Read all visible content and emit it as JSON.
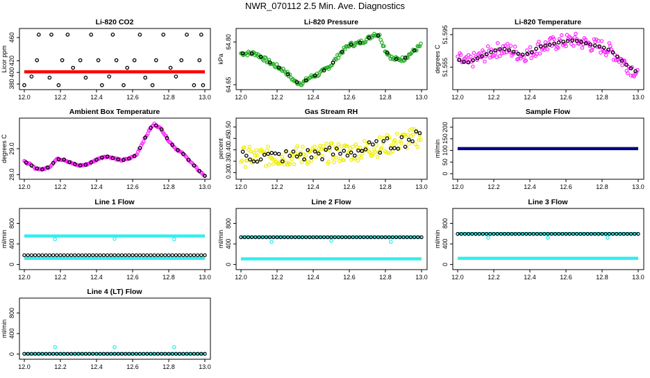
{
  "title": "NWR_070112  2.5 Min. Ave. Diagnostics",
  "colors": {
    "black": "#000000",
    "red": "#ff0000",
    "green": "#22aa22",
    "magenta": "#ff22ff",
    "yellow": "#eeee00",
    "cyan": "#33eeee",
    "navy": "#000088"
  },
  "chart_data": [
    {
      "id": "co2",
      "type": "scatter",
      "title": "Li-820 CO2",
      "ylabel": "Licor ppm",
      "xlim": [
        12.0,
        13.0
      ],
      "ylim": [
        374,
        472
      ],
      "yticks": [
        380,
        400,
        420,
        460
      ],
      "xticks": [
        "12.0",
        "12.2",
        "12.4",
        "12.6",
        "12.8",
        "13.0"
      ],
      "series": [
        {
          "color": "red",
          "kind": "line_dense",
          "values": [
            [
              12.0,
              401
            ],
            [
              13.0,
              401
            ]
          ]
        },
        {
          "color": "black",
          "kind": "points",
          "values": [
            [
              12.0,
              378
            ],
            [
              12.04,
              393
            ],
            [
              12.07,
              421
            ],
            [
              12.08,
              465
            ],
            [
              12.14,
              391
            ],
            [
              12.15,
              465
            ],
            [
              12.19,
              378
            ],
            [
              12.21,
              421
            ],
            [
              12.24,
              465
            ],
            [
              12.27,
              408
            ],
            [
              12.31,
              421
            ],
            [
              12.34,
              391
            ],
            [
              12.37,
              465
            ],
            [
              12.41,
              421
            ],
            [
              12.43,
              378
            ],
            [
              12.47,
              393
            ],
            [
              12.49,
              465
            ],
            [
              12.51,
              421
            ],
            [
              12.55,
              378
            ],
            [
              12.57,
              408
            ],
            [
              12.61,
              421
            ],
            [
              12.64,
              465
            ],
            [
              12.67,
              391
            ],
            [
              12.71,
              378
            ],
            [
              12.73,
              421
            ],
            [
              12.77,
              465
            ],
            [
              12.81,
              408
            ],
            [
              12.84,
              393
            ],
            [
              12.87,
              421
            ],
            [
              12.9,
              465
            ],
            [
              12.94,
              378
            ],
            [
              12.97,
              421
            ],
            [
              12.98,
              465
            ],
            [
              12.99,
              378
            ]
          ]
        }
      ]
    },
    {
      "id": "pressure",
      "type": "scatter",
      "title": "Li-820 Pressure",
      "ylabel": "kPa",
      "xlim": [
        12.0,
        13.0
      ],
      "ylim": [
        64.64,
        64.84
      ],
      "yticks": [
        64.65,
        64.8
      ],
      "yticklabels": [
        "64.65",
        "64.80"
      ],
      "xticks": [
        "12.0",
        "12.2",
        "12.4",
        "12.6",
        "12.8",
        "13.0"
      ],
      "series": [
        {
          "color": "green",
          "kind": "band",
          "spread": 0.008,
          "values": [
            [
              12.0,
              64.76
            ],
            [
              12.08,
              64.76
            ],
            [
              12.13,
              64.74
            ],
            [
              12.18,
              64.72
            ],
            [
              12.24,
              64.7
            ],
            [
              12.3,
              64.66
            ],
            [
              12.34,
              64.655
            ],
            [
              12.38,
              64.675
            ],
            [
              12.44,
              64.69
            ],
            [
              12.5,
              64.72
            ],
            [
              12.55,
              64.76
            ],
            [
              12.6,
              64.79
            ],
            [
              12.65,
              64.795
            ],
            [
              12.7,
              64.81
            ],
            [
              12.74,
              64.83
            ],
            [
              12.77,
              64.82
            ],
            [
              12.8,
              64.77
            ],
            [
              12.84,
              64.74
            ],
            [
              12.9,
              64.74
            ],
            [
              12.96,
              64.77
            ],
            [
              13.0,
              64.79
            ]
          ]
        },
        {
          "color": "black",
          "kind": "points_on",
          "step": 0.05
        }
      ]
    },
    {
      "id": "temp",
      "type": "scatter",
      "title": "Li-820 Temperature",
      "ylabel": "degrees C",
      "xlim": [
        12.0,
        13.0
      ],
      "ylim": [
        51.53,
        51.6
      ],
      "yticks": [
        51.555,
        51.595
      ],
      "xticks": [
        "12.0",
        "12.2",
        "12.4",
        "12.6",
        "12.8",
        "13.0"
      ],
      "series": [
        {
          "color": "magenta",
          "kind": "band",
          "spread": 0.009,
          "values": [
            [
              12.0,
              51.565
            ],
            [
              12.05,
              51.56
            ],
            [
              12.1,
              51.565
            ],
            [
              12.15,
              51.57
            ],
            [
              12.2,
              51.575
            ],
            [
              12.25,
              51.578
            ],
            [
              12.3,
              51.575
            ],
            [
              12.35,
              51.57
            ],
            [
              12.4,
              51.572
            ],
            [
              12.45,
              51.58
            ],
            [
              12.5,
              51.582
            ],
            [
              12.55,
              51.585
            ],
            [
              12.6,
              51.587
            ],
            [
              12.65,
              51.588
            ],
            [
              12.7,
              51.585
            ],
            [
              12.75,
              51.582
            ],
            [
              12.8,
              51.58
            ],
            [
              12.85,
              51.575
            ],
            [
              12.9,
              51.565
            ],
            [
              12.95,
              51.555
            ],
            [
              13.0,
              51.548
            ]
          ]
        },
        {
          "color": "black",
          "kind": "points_on",
          "step": 0.025
        }
      ]
    },
    {
      "id": "ambient",
      "type": "scatter",
      "title": "Ambient Box Temperature",
      "ylabel": "degrees C",
      "xlim": [
        12.0,
        13.0
      ],
      "ylim": [
        27.9,
        30.1
      ],
      "yticks": [
        28.0,
        29.0
      ],
      "yticklabels": [
        "28.0",
        "29.0"
      ],
      "xticks": [
        "12.0",
        "12.2",
        "12.4",
        "12.6",
        "12.8",
        "13.0"
      ],
      "series": [
        {
          "color": "magenta",
          "kind": "band",
          "spread": 0.03,
          "values": [
            [
              12.0,
              28.5
            ],
            [
              12.03,
              28.4
            ],
            [
              12.06,
              28.25
            ],
            [
              12.1,
              28.2
            ],
            [
              12.14,
              28.3
            ],
            [
              12.18,
              28.6
            ],
            [
              12.22,
              28.58
            ],
            [
              12.26,
              28.45
            ],
            [
              12.3,
              28.35
            ],
            [
              12.34,
              28.38
            ],
            [
              12.38,
              28.5
            ],
            [
              12.42,
              28.65
            ],
            [
              12.46,
              28.7
            ],
            [
              12.5,
              28.62
            ],
            [
              12.54,
              28.55
            ],
            [
              12.58,
              28.62
            ],
            [
              12.62,
              28.75
            ],
            [
              12.66,
              29.3
            ],
            [
              12.7,
              29.8
            ],
            [
              12.72,
              29.95
            ],
            [
              12.76,
              29.75
            ],
            [
              12.8,
              29.3
            ],
            [
              12.84,
              29.0
            ],
            [
              12.88,
              28.8
            ],
            [
              12.92,
              28.5
            ],
            [
              12.96,
              28.2
            ],
            [
              13.0,
              27.95
            ]
          ]
        },
        {
          "color": "black",
          "kind": "points_on",
          "step": 0.03
        }
      ]
    },
    {
      "id": "rh",
      "type": "scatter",
      "title": "Gas Stream RH",
      "ylabel": "percent",
      "xlim": [
        12.0,
        13.0
      ],
      "ylim": [
        0.28,
        0.53
      ],
      "yticks": [
        0.3,
        0.35,
        0.4,
        0.45,
        0.5
      ],
      "yticklabels": [
        "0.30",
        "0.35",
        "0.40",
        "0.45",
        "0.50"
      ],
      "xticks": [
        "12.0",
        "12.2",
        "12.4",
        "12.6",
        "12.8",
        "13.0"
      ],
      "series": [
        {
          "color": "yellow",
          "kind": "band",
          "spread": 0.045,
          "values": [
            [
              12.0,
              0.37
            ],
            [
              12.2,
              0.37
            ],
            [
              12.4,
              0.38
            ],
            [
              12.6,
              0.39
            ],
            [
              12.8,
              0.42
            ],
            [
              13.0,
              0.46
            ]
          ]
        },
        {
          "color": "black",
          "kind": "points_on",
          "step": 0.02,
          "jitter": 0.03
        }
      ]
    },
    {
      "id": "sample",
      "type": "scatter",
      "title": "Sample Flow",
      "ylabel": "ml/min",
      "xlim": [
        12.0,
        13.0
      ],
      "ylim": [
        -15,
        230
      ],
      "yticks": [
        0,
        50,
        100,
        150,
        200
      ],
      "xticks": [
        "12.0",
        "12.2",
        "12.4",
        "12.6",
        "12.8",
        "13.0"
      ],
      "series": [
        {
          "color": "navy",
          "kind": "line_dense",
          "values": [
            [
              12.0,
              108
            ],
            [
              13.0,
              108
            ]
          ]
        }
      ]
    },
    {
      "id": "line1",
      "type": "scatter",
      "title": "Line 1 Flow",
      "ylabel": "ml/min",
      "xlim": [
        12.0,
        13.0
      ],
      "ylim": [
        -60,
        1050
      ],
      "yticks": [
        0,
        400,
        800
      ],
      "xticks": [
        "12.0",
        "12.2",
        "12.4",
        "12.6",
        "12.8",
        "13.0"
      ],
      "series": [
        {
          "color": "cyan",
          "kind": "line_dense",
          "values": [
            [
              12.0,
              555
            ],
            [
              13.0,
              555
            ]
          ]
        },
        {
          "color": "cyan",
          "kind": "line_dense",
          "values": [
            [
              12.0,
              120
            ],
            [
              13.0,
              120
            ]
          ]
        },
        {
          "color": "black",
          "kind": "points_line",
          "values": [
            [
              12.0,
              180
            ],
            [
              13.0,
              180
            ]
          ]
        },
        {
          "color": "cyan",
          "kind": "points",
          "values": [
            [
              12.17,
              490
            ],
            [
              12.5,
              500
            ],
            [
              12.83,
              490
            ]
          ]
        }
      ]
    },
    {
      "id": "line2",
      "type": "scatter",
      "title": "Line 2 Flow",
      "ylabel": "ml/min",
      "xlim": [
        12.0,
        13.0
      ],
      "ylim": [
        -60,
        1050
      ],
      "yticks": [
        0,
        400,
        800
      ],
      "xticks": [
        "12.0",
        "12.2",
        "12.4",
        "12.6",
        "12.8",
        "13.0"
      ],
      "series": [
        {
          "color": "cyan",
          "kind": "line_dense",
          "values": [
            [
              12.0,
              535
            ],
            [
              13.0,
              535
            ]
          ]
        },
        {
          "color": "cyan",
          "kind": "line_dense",
          "values": [
            [
              12.0,
              110
            ],
            [
              13.0,
              110
            ]
          ]
        },
        {
          "color": "black",
          "kind": "points_line",
          "values": [
            [
              12.0,
              530
            ],
            [
              13.0,
              530
            ]
          ]
        },
        {
          "color": "cyan",
          "kind": "points",
          "values": [
            [
              12.17,
              440
            ],
            [
              12.5,
              460
            ],
            [
              12.83,
              440
            ]
          ]
        }
      ]
    },
    {
      "id": "line3",
      "type": "scatter",
      "title": "Line 3 Flow",
      "ylabel": "ml/min",
      "xlim": [
        12.0,
        13.0
      ],
      "ylim": [
        -60,
        1050
      ],
      "yticks": [
        0,
        400,
        800
      ],
      "xticks": [
        "12.0",
        "12.2",
        "12.4",
        "12.6",
        "12.8",
        "13.0"
      ],
      "series": [
        {
          "color": "cyan",
          "kind": "line_dense",
          "values": [
            [
              12.0,
              600
            ],
            [
              13.0,
              600
            ]
          ]
        },
        {
          "color": "cyan",
          "kind": "line_dense",
          "values": [
            [
              12.0,
              120
            ],
            [
              13.0,
              120
            ]
          ]
        },
        {
          "color": "black",
          "kind": "points_line",
          "values": [
            [
              12.0,
              595
            ],
            [
              13.0,
              595
            ]
          ]
        },
        {
          "color": "cyan",
          "kind": "points",
          "values": [
            [
              12.17,
              520
            ],
            [
              12.5,
              520
            ],
            [
              12.83,
              520
            ]
          ]
        }
      ]
    },
    {
      "id": "line4",
      "type": "scatter",
      "title": "Line 4 (LT) Flow",
      "ylabel": "ml/min",
      "xlim": [
        12.0,
        13.0
      ],
      "ylim": [
        -60,
        1050
      ],
      "yticks": [
        0,
        400,
        800
      ],
      "xticks": [
        "12.0",
        "12.2",
        "12.4",
        "12.6",
        "12.8",
        "13.0"
      ],
      "series": [
        {
          "color": "cyan",
          "kind": "line_dense",
          "values": [
            [
              12.0,
              5
            ],
            [
              13.0,
              5
            ]
          ]
        },
        {
          "color": "black",
          "kind": "points_line",
          "values": [
            [
              12.0,
              5
            ],
            [
              13.0,
              5
            ]
          ]
        },
        {
          "color": "cyan",
          "kind": "points",
          "values": [
            [
              12.17,
              135
            ],
            [
              12.5,
              135
            ],
            [
              12.83,
              135
            ]
          ]
        }
      ]
    }
  ]
}
